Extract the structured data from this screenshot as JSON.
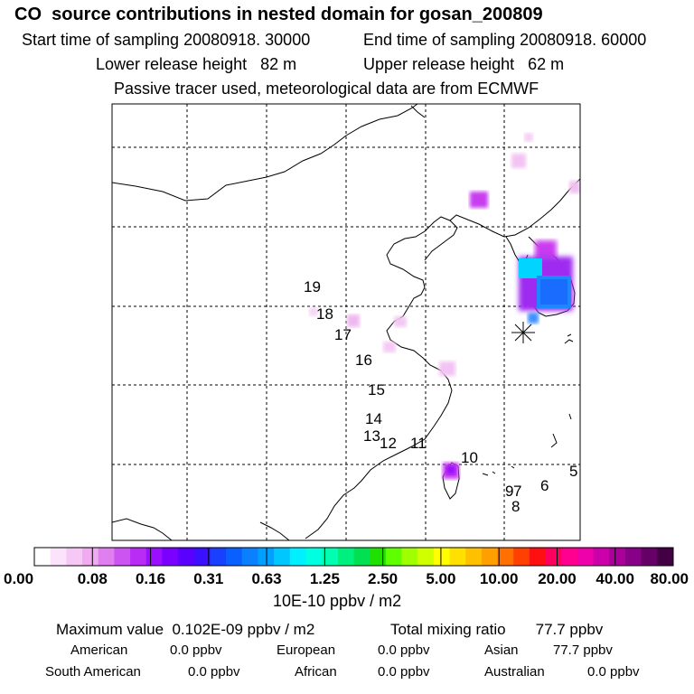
{
  "header": {
    "title": "CO  source contributions in nested domain for gosan_200809",
    "start_time": "Start time of sampling 20080918. 30000",
    "end_time": "End time of sampling 20080918. 60000",
    "lower_release": "Lower release height   82 m",
    "upper_release": "Upper release height   62 m",
    "tracer_info": "Passive tracer used, meteorological data are from ECMWF"
  },
  "chart_data": {
    "type": "heatmap",
    "title": "CO  source contributions in nested domain for gosan_200809",
    "trajectory_labels": [
      "19",
      "18",
      "17",
      "16",
      "15",
      "14",
      "13",
      "12",
      "11",
      "10",
      "9",
      "7",
      "8",
      "6",
      "5"
    ],
    "colorbar": {
      "tick_labels": [
        "0.00",
        "0.08",
        "0.16",
        "0.31",
        "0.63",
        "1.25",
        "2.50",
        "5.00",
        "10.00",
        "20.00",
        "40.00",
        "80.00"
      ],
      "unit_label": "10E-10 ppbv / m2",
      "colors": [
        "#ffffff",
        "#fbe3fb",
        "#f5c8f5",
        "#f0aaf0",
        "#e080f0",
        "#cc55f2",
        "#b82cf5",
        "#9a0fff",
        "#7a00ff",
        "#5a00ff",
        "#3a10ff",
        "#1a40ff",
        "#0a60ff",
        "#0a80ff",
        "#00a0ff",
        "#00c8ff",
        "#00f0ff",
        "#00ffe0",
        "#00ffb0",
        "#00f080",
        "#00e050",
        "#20e000",
        "#60ff00",
        "#a0ff00",
        "#d0ff00",
        "#ffff00",
        "#ffe000",
        "#ffc000",
        "#ffa000",
        "#ff7000",
        "#ff4000",
        "#ff1010",
        "#ff0060",
        "#ff0090",
        "#ee00aa",
        "#cc00aa",
        "#aa0099",
        "#880088",
        "#660066",
        "#440044"
      ]
    },
    "max_value": "Maximum value  0.102E-09 ppbv / m2",
    "total_mixing": "Total mixing ratio       77.7 ppbv",
    "regions": [
      {
        "name": "American",
        "value": "0.0 ppbv"
      },
      {
        "name": "European",
        "value": "0.0 ppbv"
      },
      {
        "name": "Asian",
        "value": "77.7 ppbv"
      },
      {
        "name": "South American",
        "value": "0.0 ppbv"
      },
      {
        "name": "African",
        "value": "0.0 ppbv"
      },
      {
        "name": "Australian",
        "value": "0.0 ppbv"
      }
    ]
  }
}
